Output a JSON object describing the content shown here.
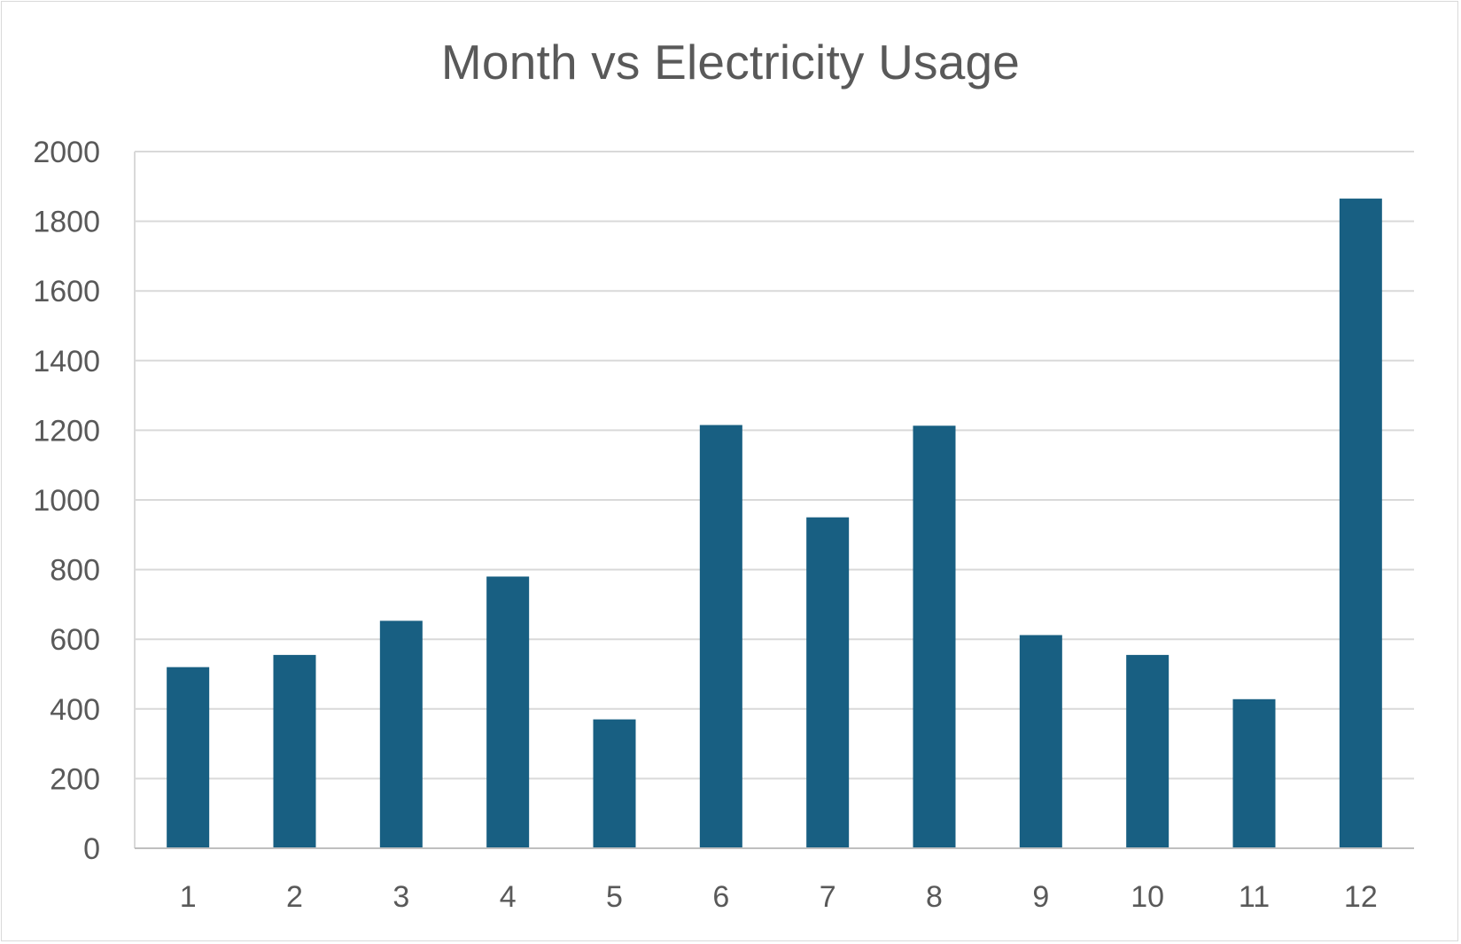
{
  "chart_data": {
    "type": "bar",
    "title": "Month vs Electricity Usage",
    "xlabel": "",
    "ylabel": "",
    "categories": [
      "1",
      "2",
      "3",
      "4",
      "5",
      "6",
      "7",
      "8",
      "9",
      "10",
      "11",
      "12"
    ],
    "values": [
      520,
      555,
      653,
      780,
      370,
      1215,
      950,
      1213,
      612,
      555,
      428,
      1865
    ],
    "ylim": [
      0,
      2000
    ],
    "yticks": [
      "0",
      "200",
      "400",
      "600",
      "800",
      "1000",
      "1200",
      "1400",
      "1600",
      "1800",
      "2000"
    ],
    "grid": true,
    "legend": "none",
    "colors": {
      "bar": "#185f82",
      "grid": "#d9d9d9",
      "axis": "#bfbfbf",
      "text": "#595959"
    }
  }
}
